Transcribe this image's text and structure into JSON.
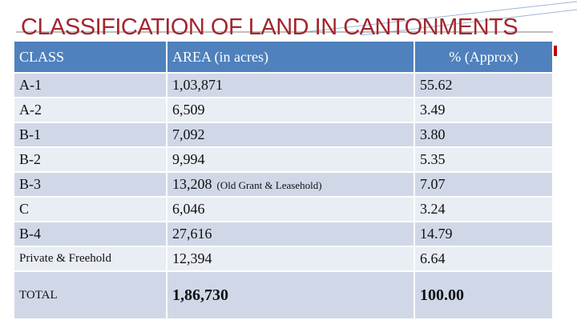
{
  "header": {
    "title": "CLASSIFICATION OF LAND IN CANTONMENTS"
  },
  "table": {
    "columns": [
      "CLASS",
      "AREA (in acres)",
      "% (Approx)"
    ],
    "rows": [
      {
        "class": "A-1",
        "area": "1,03,871",
        "pct": "55.62"
      },
      {
        "class": "A-2",
        "area": "6,509",
        "pct": "3.49"
      },
      {
        "class": "B-1",
        "area": "7,092",
        "pct": "3.80"
      },
      {
        "class": "B-2",
        "area": "9,994",
        "pct": "5.35"
      },
      {
        "class": "B-3",
        "area": "13,208",
        "note": "(Old Grant & Leasehold)",
        "pct": "7.07"
      },
      {
        "class": "C",
        "area": "6,046",
        "pct": "3.24"
      },
      {
        "class": "B-4",
        "area": "27,616",
        "pct": "14.79"
      },
      {
        "class": "Private & Freehold",
        "area": "12,394",
        "pct": "6.64"
      }
    ],
    "total": {
      "class": "TOTAL",
      "area": "1,86,730",
      "pct": "100.00"
    }
  }
}
